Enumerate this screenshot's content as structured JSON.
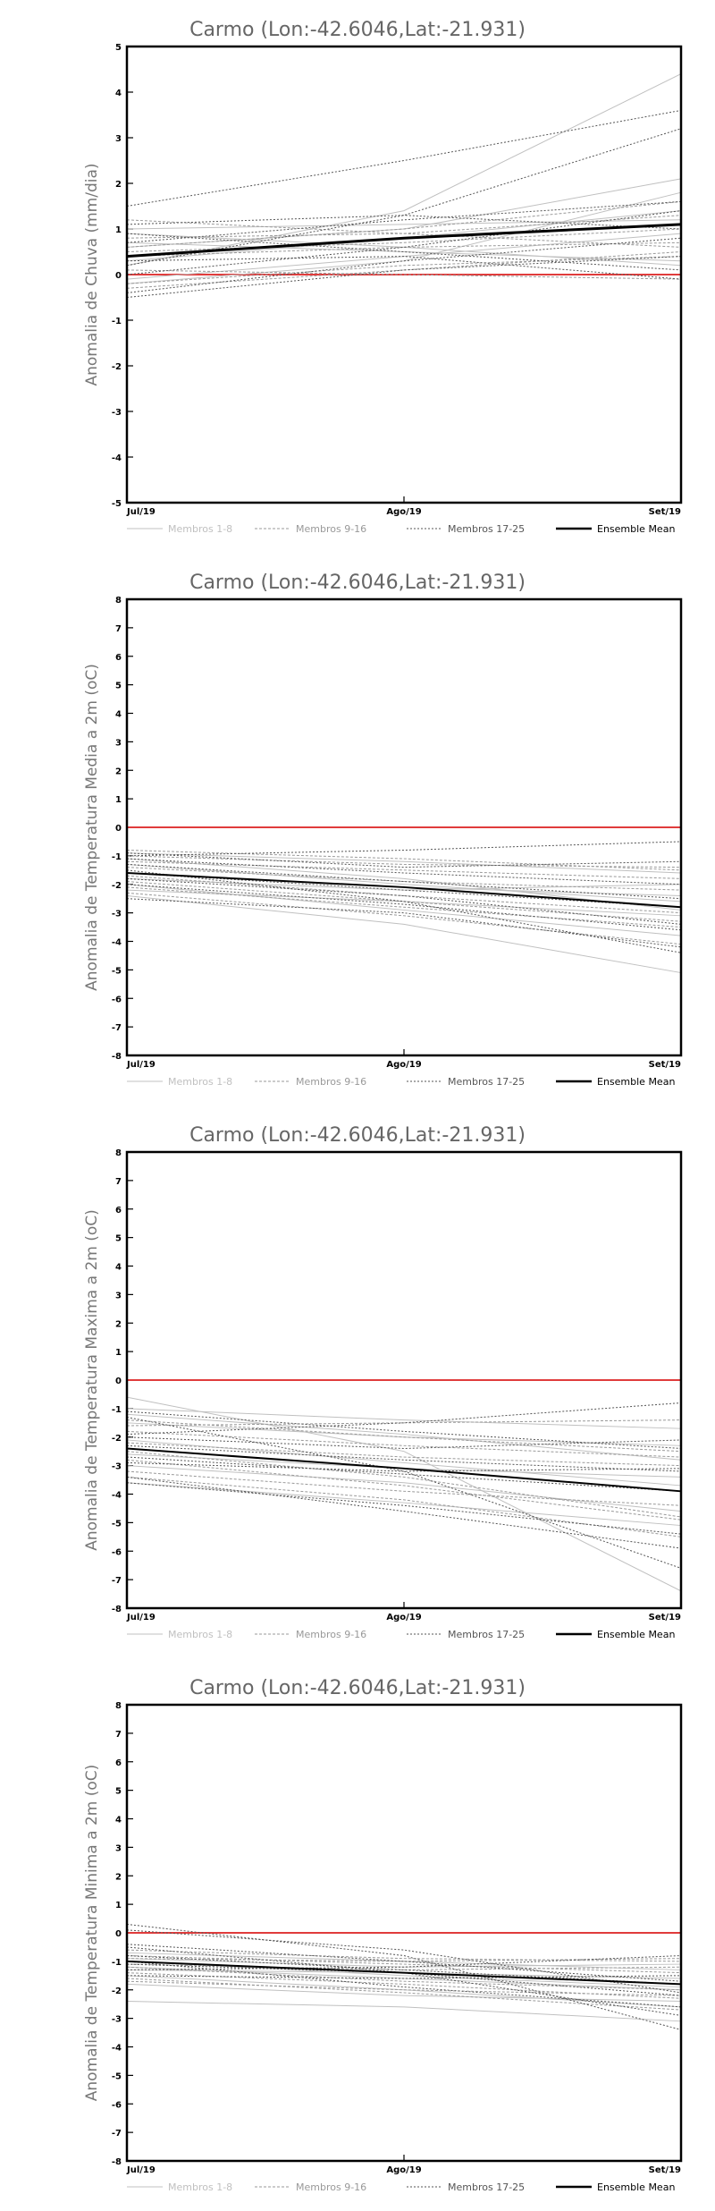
{
  "chart_data": [
    {
      "type": "line",
      "title": "Carmo (Lon:-42.6046,Lat:-21.931)",
      "ylabel": "Anomalia de Chuva (mm/dia)",
      "xlabel": "",
      "categories": [
        "Jul/19",
        "Ago/19",
        "Set/19"
      ],
      "ylim": [
        -5,
        5
      ],
      "yticks": [
        -5,
        -4,
        -3,
        -2,
        -1,
        0,
        1,
        2,
        3,
        4,
        5
      ],
      "grid": false,
      "legend_position": "bottom",
      "legend": [
        "Membros 1-8",
        "Membros 9-16",
        "Membros 17-25",
        "Ensemble Mean"
      ],
      "reference_line": {
        "y": 0,
        "color": "#e03c3c"
      },
      "series": [
        {
          "group": "Membros 1-8",
          "values": [
            0.2,
            1.4,
            4.4
          ]
        },
        {
          "group": "Membros 1-8",
          "values": [
            -0.2,
            0.3,
            1.8
          ]
        },
        {
          "group": "Membros 1-8",
          "values": [
            0.6,
            1.0,
            2.1
          ]
        },
        {
          "group": "Membros 1-8",
          "values": [
            0.9,
            0.6,
            0.2
          ]
        },
        {
          "group": "Membros 1-8",
          "values": [
            0.3,
            0.8,
            1.4
          ]
        },
        {
          "group": "Membros 1-8",
          "values": [
            -0.1,
            0.4,
            0.9
          ]
        },
        {
          "group": "Membros 1-8",
          "values": [
            0.7,
            0.5,
            0.3
          ]
        },
        {
          "group": "Membros 1-8",
          "values": [
            1.0,
            1.1,
            1.2
          ]
        },
        {
          "group": "Membros 9-16",
          "values": [
            0.5,
            0.7,
            1.0
          ]
        },
        {
          "group": "Membros 9-16",
          "values": [
            -0.3,
            0.1,
            0.5
          ]
        },
        {
          "group": "Membros 9-16",
          "values": [
            0.8,
            0.9,
            1.3
          ]
        },
        {
          "group": "Membros 9-16",
          "values": [
            0.1,
            0.0,
            -0.1
          ]
        },
        {
          "group": "Membros 9-16",
          "values": [
            0.4,
            0.6,
            0.7
          ]
        },
        {
          "group": "Membros 9-16",
          "values": [
            1.2,
            0.9,
            0.6
          ]
        },
        {
          "group": "Membros 9-16",
          "values": [
            -0.2,
            0.2,
            0.4
          ]
        },
        {
          "group": "Membros 9-16",
          "values": [
            0.6,
            1.0,
            1.6
          ]
        },
        {
          "group": "Membros 17-25",
          "values": [
            0.2,
            1.3,
            3.2
          ]
        },
        {
          "group": "Membros 17-25",
          "values": [
            1.5,
            2.5,
            3.6
          ]
        },
        {
          "group": "Membros 17-25",
          "values": [
            -0.4,
            0.3,
            0.8
          ]
        },
        {
          "group": "Membros 17-25",
          "values": [
            0.7,
            1.2,
            1.6
          ]
        },
        {
          "group": "Membros 17-25",
          "values": [
            0.9,
            0.5,
            0.1
          ]
        },
        {
          "group": "Membros 17-25",
          "values": [
            -0.5,
            0.1,
            0.4
          ]
        },
        {
          "group": "Membros 17-25",
          "values": [
            1.1,
            1.3,
            1.0
          ]
        },
        {
          "group": "Membros 17-25",
          "values": [
            0.0,
            0.6,
            1.4
          ]
        },
        {
          "group": "Membros 17-25",
          "values": [
            0.3,
            0.4,
            -0.1
          ]
        },
        {
          "group": "Ensemble Mean",
          "values": [
            0.4,
            0.8,
            1.1
          ]
        }
      ]
    },
    {
      "type": "line",
      "title": "Carmo (Lon:-42.6046,Lat:-21.931)",
      "ylabel": "Anomalia de Temperatura Media a 2m (oC)",
      "xlabel": "",
      "categories": [
        "Jul/19",
        "Ago/19",
        "Set/19"
      ],
      "ylim": [
        -8,
        8
      ],
      "yticks": [
        -8,
        -7,
        -6,
        -5,
        -4,
        -3,
        -2,
        -1,
        0,
        1,
        2,
        3,
        4,
        5,
        6,
        7,
        8
      ],
      "grid": false,
      "legend_position": "bottom",
      "legend": [
        "Membros 1-8",
        "Membros 9-16",
        "Membros 17-25",
        "Ensemble Mean"
      ],
      "reference_line": {
        "y": 0,
        "color": "#e03c3c"
      },
      "series": [
        {
          "group": "Membros 1-8",
          "values": [
            -2.4,
            -3.4,
            -5.1
          ]
        },
        {
          "group": "Membros 1-8",
          "values": [
            -1.3,
            -2.0,
            -2.6
          ]
        },
        {
          "group": "Membros 1-8",
          "values": [
            -0.9,
            -1.2,
            -1.6
          ]
        },
        {
          "group": "Membros 1-8",
          "values": [
            -2.0,
            -2.9,
            -3.8
          ]
        },
        {
          "group": "Membros 1-8",
          "values": [
            -1.6,
            -2.1,
            -2.4
          ]
        },
        {
          "group": "Membros 1-8",
          "values": [
            -2.2,
            -2.6,
            -3.1
          ]
        },
        {
          "group": "Membros 1-8",
          "values": [
            -1.1,
            -1.8,
            -2.9
          ]
        },
        {
          "group": "Membros 1-8",
          "values": [
            -1.8,
            -2.2,
            -2.0
          ]
        },
        {
          "group": "Membros 9-16",
          "values": [
            -1.0,
            -1.3,
            -1.4
          ]
        },
        {
          "group": "Membros 9-16",
          "values": [
            -1.9,
            -2.6,
            -3.3
          ]
        },
        {
          "group": "Membros 9-16",
          "values": [
            -1.4,
            -1.9,
            -2.2
          ]
        },
        {
          "group": "Membros 9-16",
          "values": [
            -2.3,
            -3.1,
            -4.1
          ]
        },
        {
          "group": "Membros 9-16",
          "values": [
            -1.2,
            -1.5,
            -1.8
          ]
        },
        {
          "group": "Membros 9-16",
          "values": [
            -1.7,
            -2.4,
            -3.0
          ]
        },
        {
          "group": "Membros 9-16",
          "values": [
            -2.1,
            -2.8,
            -3.5
          ]
        },
        {
          "group": "Membros 9-16",
          "values": [
            -0.8,
            -1.1,
            -1.5
          ]
        },
        {
          "group": "Membros 17-25",
          "values": [
            -1.0,
            -0.8,
            -0.5
          ]
        },
        {
          "group": "Membros 17-25",
          "values": [
            -1.5,
            -2.6,
            -4.4
          ]
        },
        {
          "group": "Membros 17-25",
          "values": [
            -0.9,
            -1.4,
            -1.2
          ]
        },
        {
          "group": "Membros 17-25",
          "values": [
            -2.0,
            -2.7,
            -3.6
          ]
        },
        {
          "group": "Membros 17-25",
          "values": [
            -1.3,
            -1.9,
            -2.5
          ]
        },
        {
          "group": "Membros 17-25",
          "values": [
            -1.6,
            -2.2,
            -2.8
          ]
        },
        {
          "group": "Membros 17-25",
          "values": [
            -1.1,
            -1.6,
            -2.0
          ]
        },
        {
          "group": "Membros 17-25",
          "values": [
            -2.5,
            -3.0,
            -4.2
          ]
        },
        {
          "group": "Membros 17-25",
          "values": [
            -1.8,
            -2.4,
            -3.4
          ]
        },
        {
          "group": "Ensemble Mean",
          "values": [
            -1.6,
            -2.1,
            -2.8
          ]
        }
      ]
    },
    {
      "type": "line",
      "title": "Carmo (Lon:-42.6046,Lat:-21.931)",
      "ylabel": "Anomalia de Temperatura Maxima a 2m (oC)",
      "xlabel": "",
      "categories": [
        "Jul/19",
        "Ago/19",
        "Set/19"
      ],
      "ylim": [
        -8,
        8
      ],
      "yticks": [
        -8,
        -7,
        -6,
        -5,
        -4,
        -3,
        -2,
        -1,
        0,
        1,
        2,
        3,
        4,
        5,
        6,
        7,
        8
      ],
      "grid": false,
      "legend_position": "bottom",
      "legend": [
        "Membros 1-8",
        "Membros 9-16",
        "Membros 17-25",
        "Ensemble Mean"
      ],
      "reference_line": {
        "y": 0,
        "color": "#e03c3c"
      },
      "series": [
        {
          "group": "Membros 1-8",
          "values": [
            -0.6,
            -2.5,
            -7.4
          ]
        },
        {
          "group": "Membros 1-8",
          "values": [
            -1.0,
            -1.4,
            -1.7
          ]
        },
        {
          "group": "Membros 1-8",
          "values": [
            -3.6,
            -4.3,
            -5.1
          ]
        },
        {
          "group": "Membros 1-8",
          "values": [
            -2.1,
            -2.9,
            -3.7
          ]
        },
        {
          "group": "Membros 1-8",
          "values": [
            -1.5,
            -2.0,
            -2.3
          ]
        },
        {
          "group": "Membros 1-8",
          "values": [
            -3.0,
            -3.6,
            -4.6
          ]
        },
        {
          "group": "Membros 1-8",
          "values": [
            -2.6,
            -3.1,
            -3.4
          ]
        },
        {
          "group": "Membros 1-8",
          "values": [
            -1.2,
            -1.9,
            -2.8
          ]
        },
        {
          "group": "Membros 9-16",
          "values": [
            -1.4,
            -2.0,
            -2.5
          ]
        },
        {
          "group": "Membros 9-16",
          "values": [
            -3.4,
            -4.2,
            -5.5
          ]
        },
        {
          "group": "Membros 9-16",
          "values": [
            -2.2,
            -2.7,
            -3.0
          ]
        },
        {
          "group": "Membros 9-16",
          "values": [
            -2.8,
            -3.7,
            -4.9
          ]
        },
        {
          "group": "Membros 9-16",
          "values": [
            -1.8,
            -2.3,
            -2.7
          ]
        },
        {
          "group": "Membros 9-16",
          "values": [
            -3.2,
            -3.9,
            -4.4
          ]
        },
        {
          "group": "Membros 9-16",
          "values": [
            -2.5,
            -3.4,
            -4.8
          ]
        },
        {
          "group": "Membros 9-16",
          "values": [
            -1.6,
            -1.5,
            -1.4
          ]
        },
        {
          "group": "Membros 17-25",
          "values": [
            -1.9,
            -1.5,
            -0.8
          ]
        },
        {
          "group": "Membros 17-25",
          "values": [
            -1.3,
            -3.2,
            -6.6
          ]
        },
        {
          "group": "Membros 17-25",
          "values": [
            -2.3,
            -2.8,
            -3.2
          ]
        },
        {
          "group": "Membros 17-25",
          "values": [
            -3.4,
            -4.6,
            -5.9
          ]
        },
        {
          "group": "Membros 17-25",
          "values": [
            -2.0,
            -2.4,
            -2.1
          ]
        },
        {
          "group": "Membros 17-25",
          "values": [
            -2.7,
            -3.3,
            -3.9
          ]
        },
        {
          "group": "Membros 17-25",
          "values": [
            -1.1,
            -1.8,
            -2.4
          ]
        },
        {
          "group": "Membros 17-25",
          "values": [
            -3.6,
            -4.4,
            -5.4
          ]
        },
        {
          "group": "Membros 17-25",
          "values": [
            -2.9,
            -3.2,
            -3.1
          ]
        },
        {
          "group": "Ensemble Mean",
          "values": [
            -2.4,
            -3.1,
            -3.9
          ]
        }
      ]
    },
    {
      "type": "line",
      "title": "Carmo (Lon:-42.6046,Lat:-21.931)",
      "ylabel": "Anomalia de Temperatura Minima a 2m (oC)",
      "xlabel": "",
      "categories": [
        "Jul/19",
        "Ago/19",
        "Set/19"
      ],
      "ylim": [
        -8,
        8
      ],
      "yticks": [
        -8,
        -7,
        -6,
        -5,
        -4,
        -3,
        -2,
        -1,
        0,
        1,
        2,
        3,
        4,
        5,
        6,
        7,
        8
      ],
      "grid": false,
      "legend_position": "bottom",
      "legend": [
        "Membros 1-8",
        "Membros 9-16",
        "Membros 17-25",
        "Ensemble Mean"
      ],
      "reference_line": {
        "y": 0,
        "color": "#e03c3c"
      },
      "series": [
        {
          "group": "Membros 1-8",
          "values": [
            -2.4,
            -2.6,
            -3.1
          ]
        },
        {
          "group": "Membros 1-8",
          "values": [
            -0.7,
            -1.0,
            -1.3
          ]
        },
        {
          "group": "Membros 1-8",
          "values": [
            -1.2,
            -1.6,
            -2.0
          ]
        },
        {
          "group": "Membros 1-8",
          "values": [
            -1.5,
            -2.0,
            -2.6
          ]
        },
        {
          "group": "Membros 1-8",
          "values": [
            -0.9,
            -1.2,
            -1.1
          ]
        },
        {
          "group": "Membros 1-8",
          "values": [
            -1.8,
            -2.2,
            -2.4
          ]
        },
        {
          "group": "Membros 1-8",
          "values": [
            -1.0,
            -1.5,
            -1.9
          ]
        },
        {
          "group": "Membros 1-8",
          "values": [
            -1.3,
            -1.4,
            -1.6
          ]
        },
        {
          "group": "Membros 9-16",
          "values": [
            -0.8,
            -1.1,
            -1.4
          ]
        },
        {
          "group": "Membros 9-16",
          "values": [
            -1.4,
            -1.8,
            -2.3
          ]
        },
        {
          "group": "Membros 9-16",
          "values": [
            -1.1,
            -1.3,
            -1.2
          ]
        },
        {
          "group": "Membros 9-16",
          "values": [
            -1.6,
            -2.1,
            -2.7
          ]
        },
        {
          "group": "Membros 9-16",
          "values": [
            -0.6,
            -0.9,
            -1.0
          ]
        },
        {
          "group": "Membros 9-16",
          "values": [
            -1.7,
            -2.0,
            -2.2
          ]
        },
        {
          "group": "Membros 9-16",
          "values": [
            -1.2,
            -1.7,
            -2.0
          ]
        },
        {
          "group": "Membros 9-16",
          "values": [
            -0.9,
            -1.0,
            -0.9
          ]
        },
        {
          "group": "Membros 17-25",
          "values": [
            0.3,
            -0.8,
            -3.4
          ]
        },
        {
          "group": "Membros 17-25",
          "values": [
            0.1,
            -0.6,
            -2.1
          ]
        },
        {
          "group": "Membros 17-25",
          "values": [
            -0.5,
            -1.4,
            -2.9
          ]
        },
        {
          "group": "Membros 17-25",
          "values": [
            -1.3,
            -1.2,
            -0.8
          ]
        },
        {
          "group": "Membros 17-25",
          "values": [
            -0.8,
            -1.3,
            -1.8
          ]
        },
        {
          "group": "Membros 17-25",
          "values": [
            -1.5,
            -1.6,
            -1.5
          ]
        },
        {
          "group": "Membros 17-25",
          "values": [
            -0.4,
            -1.0,
            -1.7
          ]
        },
        {
          "group": "Membros 17-25",
          "values": [
            -1.0,
            -1.9,
            -2.6
          ]
        },
        {
          "group": "Membros 17-25",
          "values": [
            -1.1,
            -1.4,
            -2.2
          ]
        },
        {
          "group": "Ensemble Mean",
          "values": [
            -1.0,
            -1.4,
            -1.8
          ]
        }
      ]
    }
  ],
  "legend_styles": {
    "Membros 1-8": {
      "color": "#c0c0c0",
      "dash": "none"
    },
    "Membros 9-16": {
      "color": "#999999",
      "dash": "3,2"
    },
    "Membros 17-25": {
      "color": "#555555",
      "dash": "2,2"
    },
    "Ensemble Mean": {
      "color": "#000000",
      "dash": "none"
    }
  }
}
